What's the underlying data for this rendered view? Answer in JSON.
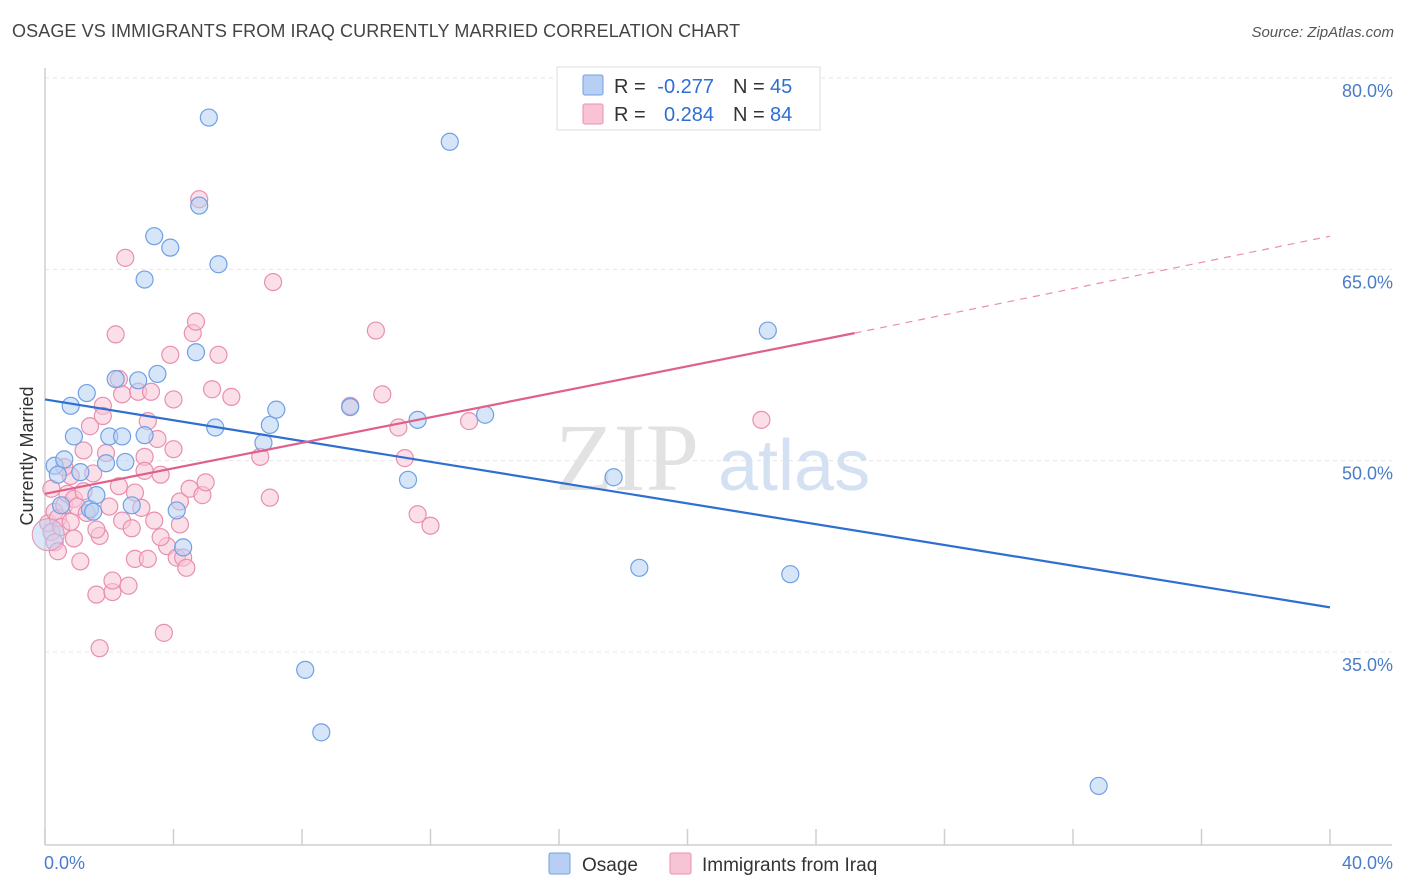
{
  "header": {
    "title": "OSAGE VS IMMIGRANTS FROM IRAQ CURRENTLY MARRIED CORRELATION CHART",
    "source": "Source: ZipAtlas.com"
  },
  "watermark": {
    "zip": "ZIP",
    "atlas": "atlas"
  },
  "legend": {
    "r_label": "R =",
    "n_label": "N =",
    "rows": [
      {
        "r": "-0.277",
        "n": "45",
        "color": "#6fa0e6",
        "fill": "#b6cff3"
      },
      {
        "r": "0.284",
        "n": "84",
        "color": "#e98fad",
        "fill": "#f8c4d5"
      }
    ]
  },
  "chart_data": {
    "type": "scatter",
    "title": "OSAGE VS IMMIGRANTS FROM IRAQ CURRENTLY MARRIED CORRELATION CHART",
    "xlabel": "",
    "ylabel": "Currently Married",
    "xlim": [
      0,
      40
    ],
    "ylim": [
      20,
      82
    ],
    "x_tick_labels": [
      "0.0%",
      "40.0%"
    ],
    "y_ticks": [
      35,
      50,
      65,
      80
    ],
    "y_tick_labels": [
      "35.0%",
      "50.0%",
      "65.0%",
      "80.0%"
    ],
    "grid": true,
    "legend_position": "top-center",
    "colors": {
      "osage": "#2e6fd1",
      "iraq": "#e0608c"
    },
    "series": [
      {
        "name": "Osage",
        "points": [
          [
            0.3,
            49.6
          ],
          [
            0.6,
            50.1
          ],
          [
            0.4,
            48.9
          ],
          [
            0.8,
            54.3
          ],
          [
            0.9,
            51.9
          ],
          [
            1.3,
            55.3
          ],
          [
            1.1,
            49.1
          ],
          [
            1.4,
            46.2
          ],
          [
            1.6,
            47.3
          ],
          [
            1.9,
            49.8
          ],
          [
            2.0,
            51.9
          ],
          [
            2.2,
            56.4
          ],
          [
            2.4,
            51.9
          ],
          [
            2.5,
            49.9
          ],
          [
            2.7,
            46.5
          ],
          [
            2.9,
            56.3
          ],
          [
            3.1,
            52.0
          ],
          [
            3.1,
            64.2
          ],
          [
            3.4,
            67.6
          ],
          [
            3.5,
            56.8
          ],
          [
            3.9,
            66.7
          ],
          [
            4.1,
            46.1
          ],
          [
            4.3,
            43.2
          ],
          [
            4.7,
            58.5
          ],
          [
            4.8,
            70.0
          ],
          [
            5.1,
            76.9
          ],
          [
            5.3,
            52.6
          ],
          [
            5.4,
            65.4
          ],
          [
            6.8,
            51.4
          ],
          [
            7.0,
            52.8
          ],
          [
            7.2,
            54.0
          ],
          [
            8.1,
            33.6
          ],
          [
            8.6,
            28.7
          ],
          [
            9.5,
            54.2
          ],
          [
            11.3,
            48.5
          ],
          [
            11.6,
            53.2
          ],
          [
            12.6,
            75.0
          ],
          [
            13.7,
            53.6
          ],
          [
            17.7,
            48.7
          ],
          [
            18.5,
            41.6
          ],
          [
            22.5,
            60.2
          ],
          [
            23.2,
            41.1
          ],
          [
            32.8,
            24.5
          ],
          [
            0.5,
            46.5
          ],
          [
            1.5,
            46.0
          ]
        ],
        "trend": {
          "x": [
            0,
            40
          ],
          "y": [
            54.8,
            38.5
          ]
        }
      },
      {
        "name": "Immigrants from Iraq",
        "points": [
          [
            0.1,
            45.1
          ],
          [
            0.2,
            44.4
          ],
          [
            0.3,
            46.0
          ],
          [
            0.3,
            43.6
          ],
          [
            0.4,
            45.5
          ],
          [
            0.5,
            44.8
          ],
          [
            0.6,
            46.5
          ],
          [
            0.7,
            47.4
          ],
          [
            0.8,
            45.2
          ],
          [
            0.8,
            48.8
          ],
          [
            0.9,
            47.0
          ],
          [
            1.0,
            46.4
          ],
          [
            1.1,
            42.1
          ],
          [
            1.2,
            47.6
          ],
          [
            1.3,
            45.9
          ],
          [
            1.4,
            52.7
          ],
          [
            1.5,
            49.0
          ],
          [
            1.6,
            39.5
          ],
          [
            1.7,
            35.3
          ],
          [
            1.7,
            44.1
          ],
          [
            1.8,
            54.3
          ],
          [
            1.8,
            53.5
          ],
          [
            1.9,
            50.6
          ],
          [
            2.0,
            46.4
          ],
          [
            2.1,
            39.7
          ],
          [
            2.1,
            40.6
          ],
          [
            2.2,
            59.9
          ],
          [
            2.3,
            56.4
          ],
          [
            2.4,
            55.2
          ],
          [
            2.4,
            45.3
          ],
          [
            2.5,
            65.9
          ],
          [
            2.6,
            40.2
          ],
          [
            2.7,
            44.7
          ],
          [
            2.8,
            42.3
          ],
          [
            2.9,
            55.4
          ],
          [
            3.0,
            46.3
          ],
          [
            3.1,
            50.3
          ],
          [
            3.1,
            49.2
          ],
          [
            3.2,
            53.1
          ],
          [
            3.2,
            42.3
          ],
          [
            3.3,
            55.4
          ],
          [
            3.4,
            45.3
          ],
          [
            3.5,
            51.7
          ],
          [
            3.6,
            48.9
          ],
          [
            3.7,
            36.5
          ],
          [
            3.8,
            43.3
          ],
          [
            3.9,
            58.3
          ],
          [
            4.0,
            54.8
          ],
          [
            4.1,
            42.4
          ],
          [
            4.2,
            46.8
          ],
          [
            4.2,
            45.0
          ],
          [
            4.3,
            42.4
          ],
          [
            4.4,
            41.6
          ],
          [
            4.5,
            47.8
          ],
          [
            4.6,
            60.0
          ],
          [
            4.7,
            60.9
          ],
          [
            4.8,
            70.5
          ],
          [
            4.9,
            47.3
          ],
          [
            5.0,
            48.3
          ],
          [
            5.2,
            55.6
          ],
          [
            5.4,
            58.3
          ],
          [
            5.8,
            55.0
          ],
          [
            6.7,
            50.3
          ],
          [
            7.0,
            47.1
          ],
          [
            7.1,
            64.0
          ],
          [
            9.5,
            54.3
          ],
          [
            10.3,
            60.2
          ],
          [
            10.5,
            55.2
          ],
          [
            11.0,
            52.6
          ],
          [
            11.2,
            50.2
          ],
          [
            11.6,
            45.8
          ],
          [
            12.0,
            44.9
          ],
          [
            13.2,
            53.1
          ],
          [
            22.3,
            53.2
          ],
          [
            0.2,
            47.8
          ],
          [
            0.4,
            42.9
          ],
          [
            0.9,
            43.9
          ],
          [
            1.2,
            50.8
          ],
          [
            1.6,
            44.6
          ],
          [
            2.3,
            48.0
          ],
          [
            2.8,
            47.5
          ],
          [
            3.6,
            44.0
          ],
          [
            4.0,
            50.9
          ],
          [
            0.6,
            49.5
          ]
        ],
        "trend": {
          "x": [
            0,
            25.2
          ],
          "y": [
            47.4,
            60.0
          ]
        },
        "trend_dashed": {
          "x": [
            25.2,
            40
          ],
          "y": [
            60.0,
            67.6
          ]
        }
      }
    ]
  }
}
